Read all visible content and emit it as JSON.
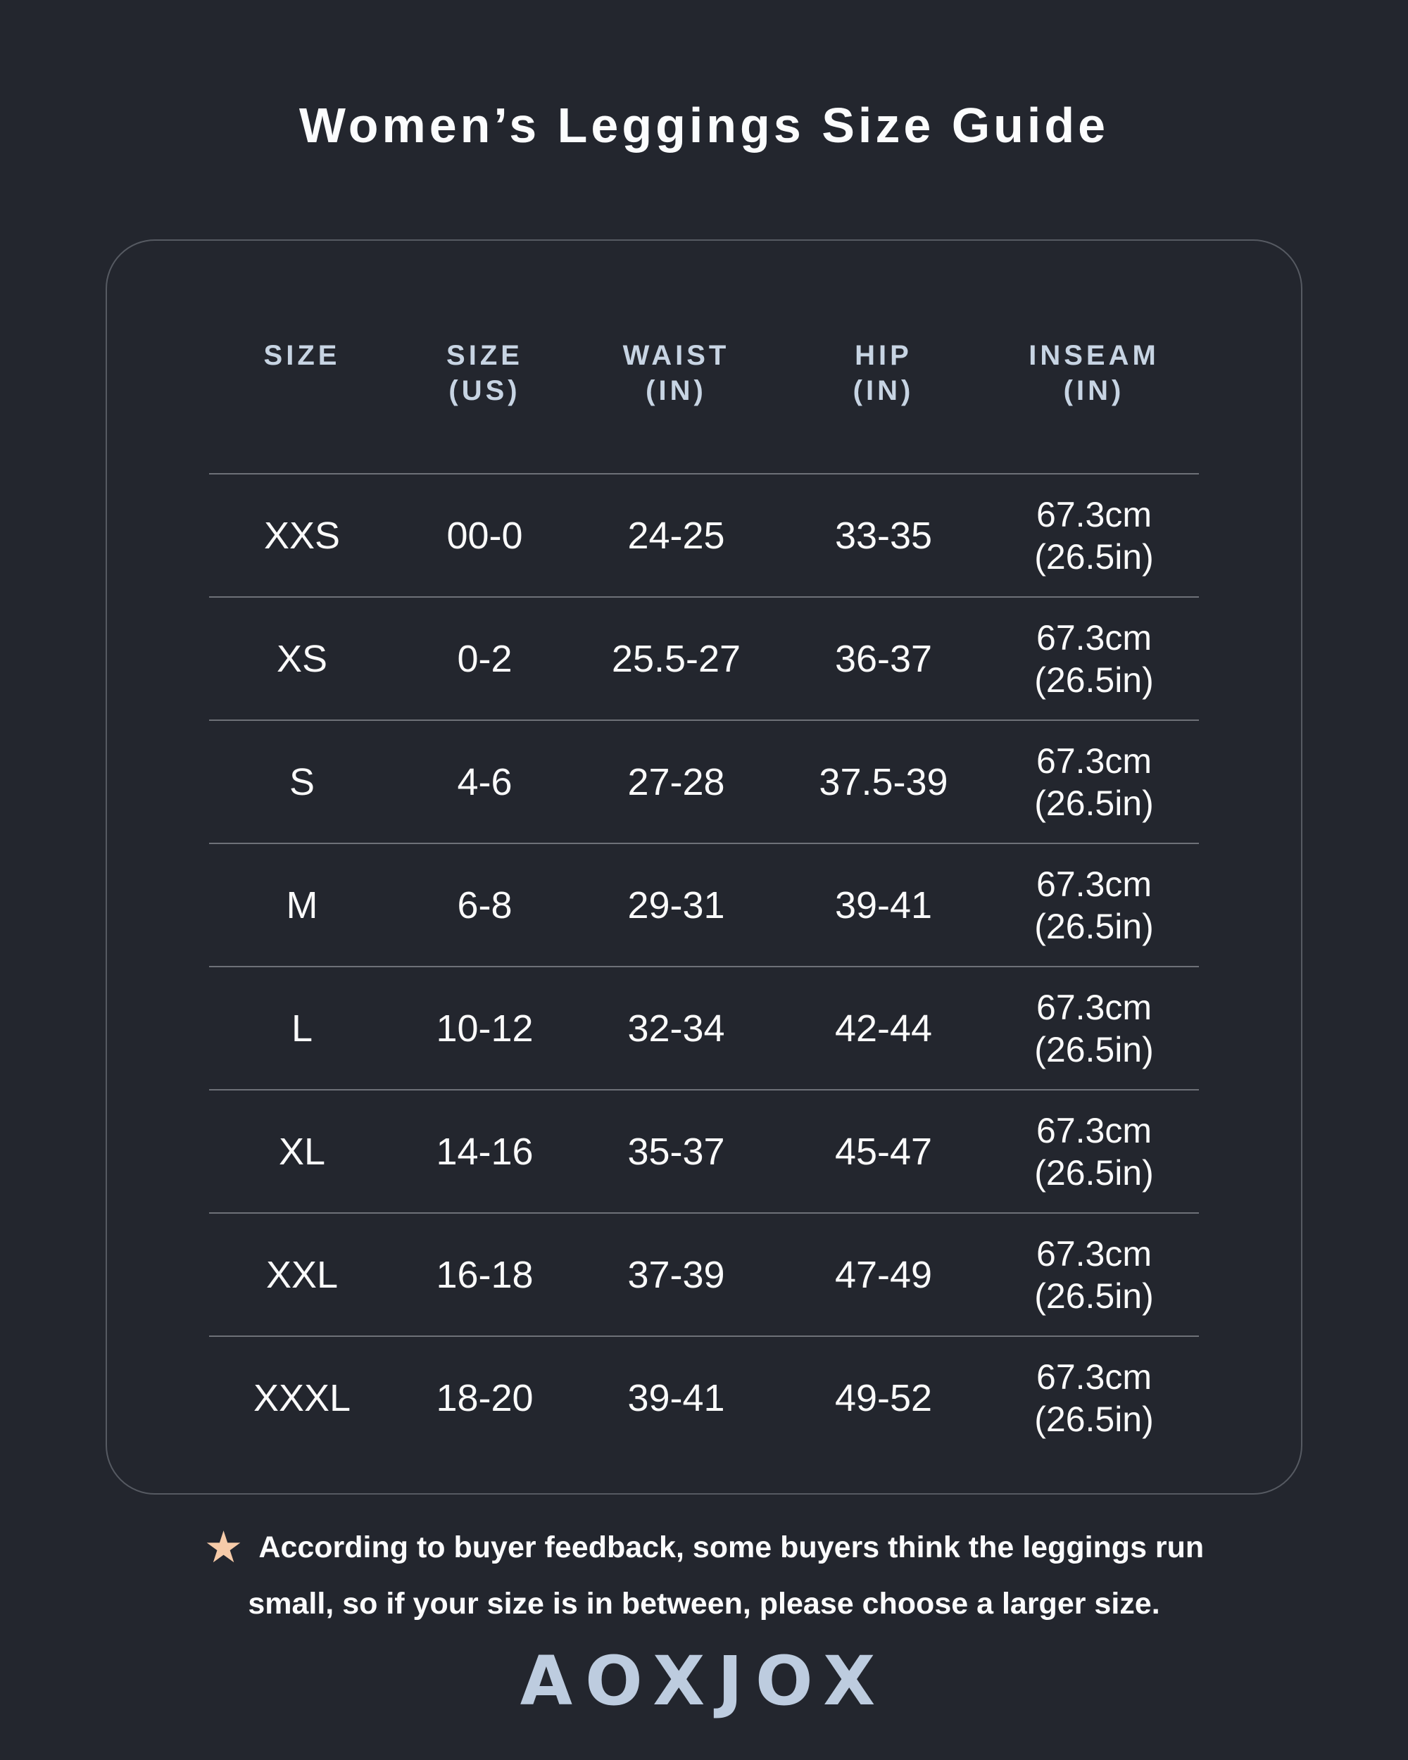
{
  "colors": {
    "background": "#23262e",
    "card_border": "#565a62",
    "divider": "#6e7178",
    "header_text": "#c7d4e3",
    "body_text": "#fafafa",
    "title_text": "#fbfcfd",
    "star": "#f6cba9",
    "logo_text": "#bdccdf"
  },
  "title": "Women’s Leggings Size Guide",
  "chart_data": {
    "type": "table",
    "title": "Women’s Leggings Size Guide",
    "columns": [
      "SIZE",
      "SIZE (US)",
      "WAIST (IN)",
      "HIP (IN)",
      "INSEAM (IN)"
    ],
    "headers": [
      {
        "line1": "SIZE",
        "line2": ""
      },
      {
        "line1": "SIZE",
        "line2": "(US)"
      },
      {
        "line1": "WAIST",
        "line2": "(IN)"
      },
      {
        "line1": "HIP",
        "line2": "(IN)"
      },
      {
        "line1": "INSEAM",
        "line2": "(IN)"
      }
    ],
    "rows": [
      {
        "size": "XXS",
        "size_us": "00-0",
        "waist": "24-25",
        "hip": "33-35",
        "inseam_cm": "67.3cm",
        "inseam_in": "(26.5in)"
      },
      {
        "size": "XS",
        "size_us": "0-2",
        "waist": "25.5-27",
        "hip": "36-37",
        "inseam_cm": "67.3cm",
        "inseam_in": "(26.5in)"
      },
      {
        "size": "S",
        "size_us": "4-6",
        "waist": "27-28",
        "hip": "37.5-39",
        "inseam_cm": "67.3cm",
        "inseam_in": "(26.5in)"
      },
      {
        "size": "M",
        "size_us": "6-8",
        "waist": "29-31",
        "hip": "39-41",
        "inseam_cm": "67.3cm",
        "inseam_in": "(26.5in)"
      },
      {
        "size": "L",
        "size_us": "10-12",
        "waist": "32-34",
        "hip": "42-44",
        "inseam_cm": "67.3cm",
        "inseam_in": "(26.5in)"
      },
      {
        "size": "XL",
        "size_us": "14-16",
        "waist": "35-37",
        "hip": "45-47",
        "inseam_cm": "67.3cm",
        "inseam_in": "(26.5in)"
      },
      {
        "size": "XXL",
        "size_us": "16-18",
        "waist": "37-39",
        "hip": "47-49",
        "inseam_cm": "67.3cm",
        "inseam_in": "(26.5in)"
      },
      {
        "size": "XXXL",
        "size_us": "18-20",
        "waist": "39-41",
        "hip": "49-52",
        "inseam_cm": "67.3cm",
        "inseam_in": "(26.5in)"
      }
    ]
  },
  "note": {
    "star_glyph": "★",
    "line1": "According to buyer feedback, some buyers think the leggings run",
    "line2": "small, so if your size is in between, please choose a larger size."
  },
  "brand": {
    "name": "AOXJOX"
  }
}
